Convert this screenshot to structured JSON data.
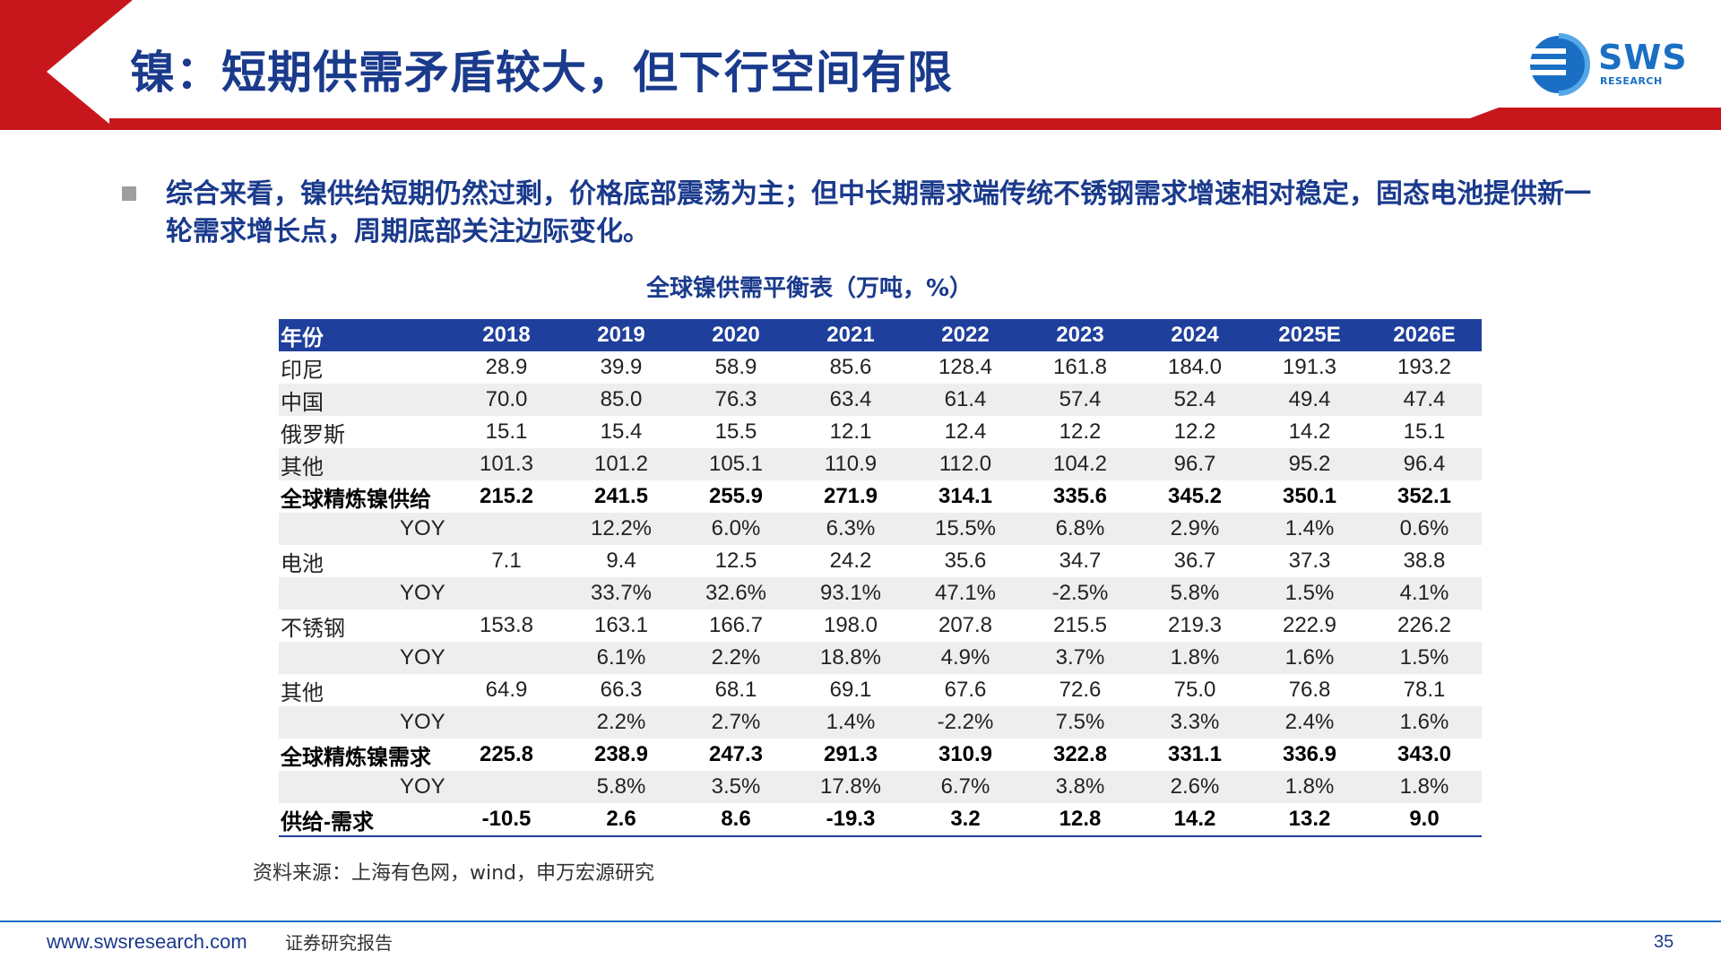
{
  "header": {
    "title": "镍：短期供需矛盾较大，但下行空间有限",
    "logo_text": "SWS",
    "logo_sub": "RESEARCH",
    "accent_color": "#c8161d",
    "title_color": "#1a3a8c"
  },
  "bullet": {
    "line1": "综合来看，镍供给短期仍然过剩，价格底部震荡为主；但中长期需求端传统不锈钢需求增速相对稳定，固态电池提供新一",
    "line2": "轮需求增长点，周期底部关注边际变化。"
  },
  "table": {
    "caption": "全球镍供需平衡表（万吨，%）",
    "header": [
      "年份",
      "2018",
      "2019",
      "2020",
      "2021",
      "2022",
      "2023",
      "2024",
      "2025E",
      "2026E"
    ],
    "rows": [
      {
        "label": "印尼",
        "values": [
          "28.9",
          "39.9",
          "58.9",
          "85.6",
          "128.4",
          "161.8",
          "184.0",
          "191.3",
          "193.2"
        ]
      },
      {
        "label": "中国",
        "values": [
          "70.0",
          "85.0",
          "76.3",
          "63.4",
          "61.4",
          "57.4",
          "52.4",
          "49.4",
          "47.4"
        ]
      },
      {
        "label": "俄罗斯",
        "values": [
          "15.1",
          "15.4",
          "15.5",
          "12.1",
          "12.4",
          "12.2",
          "12.2",
          "14.2",
          "15.1"
        ]
      },
      {
        "label": "其他",
        "values": [
          "101.3",
          "101.2",
          "105.1",
          "110.9",
          "112.0",
          "104.2",
          "96.7",
          "95.2",
          "96.4"
        ]
      },
      {
        "label": "全球精炼镍供给",
        "values": [
          "215.2",
          "241.5",
          "255.9",
          "271.9",
          "314.1",
          "335.6",
          "345.2",
          "350.1",
          "352.1"
        ],
        "bold": true
      },
      {
        "label": "YOY",
        "values": [
          "",
          "12.2%",
          "6.0%",
          "6.3%",
          "15.5%",
          "6.8%",
          "2.9%",
          "1.4%",
          "0.6%"
        ],
        "yoy": true
      },
      {
        "label": "电池",
        "values": [
          "7.1",
          "9.4",
          "12.5",
          "24.2",
          "35.6",
          "34.7",
          "36.7",
          "37.3",
          "38.8"
        ]
      },
      {
        "label": "YOY",
        "values": [
          "",
          "33.7%",
          "32.6%",
          "93.1%",
          "47.1%",
          "-2.5%",
          "5.8%",
          "1.5%",
          "4.1%"
        ],
        "yoy": true
      },
      {
        "label": "不锈钢",
        "values": [
          "153.8",
          "163.1",
          "166.7",
          "198.0",
          "207.8",
          "215.5",
          "219.3",
          "222.9",
          "226.2"
        ]
      },
      {
        "label": "YOY",
        "values": [
          "",
          "6.1%",
          "2.2%",
          "18.8%",
          "4.9%",
          "3.7%",
          "1.8%",
          "1.6%",
          "1.5%"
        ],
        "yoy": true
      },
      {
        "label": "其他",
        "values": [
          "64.9",
          "66.3",
          "68.1",
          "69.1",
          "67.6",
          "72.6",
          "75.0",
          "76.8",
          "78.1"
        ]
      },
      {
        "label": "YOY",
        "values": [
          "",
          "2.2%",
          "2.7%",
          "1.4%",
          "-2.2%",
          "7.5%",
          "3.3%",
          "2.4%",
          "1.6%"
        ],
        "yoy": true
      },
      {
        "label": "全球精炼镍需求",
        "values": [
          "225.8",
          "238.9",
          "247.3",
          "291.3",
          "310.9",
          "322.8",
          "331.1",
          "336.9",
          "343.0"
        ],
        "bold": true
      },
      {
        "label": "YOY",
        "values": [
          "",
          "5.8%",
          "3.5%",
          "17.8%",
          "6.7%",
          "3.8%",
          "2.6%",
          "1.8%",
          "1.8%"
        ],
        "yoy": true
      },
      {
        "label": "供给-需求",
        "values": [
          "-10.5",
          "2.6",
          "8.6",
          "-19.3",
          "3.2",
          "12.8",
          "14.2",
          "13.2",
          "9.0"
        ],
        "bold": true
      }
    ],
    "header_color": "#1f3f9c"
  },
  "source": "资料来源：上海有色网，wind，申万宏源研究",
  "footer": {
    "url": "www.swsresearch.com",
    "tag": "证券研究报告",
    "page": "35"
  }
}
